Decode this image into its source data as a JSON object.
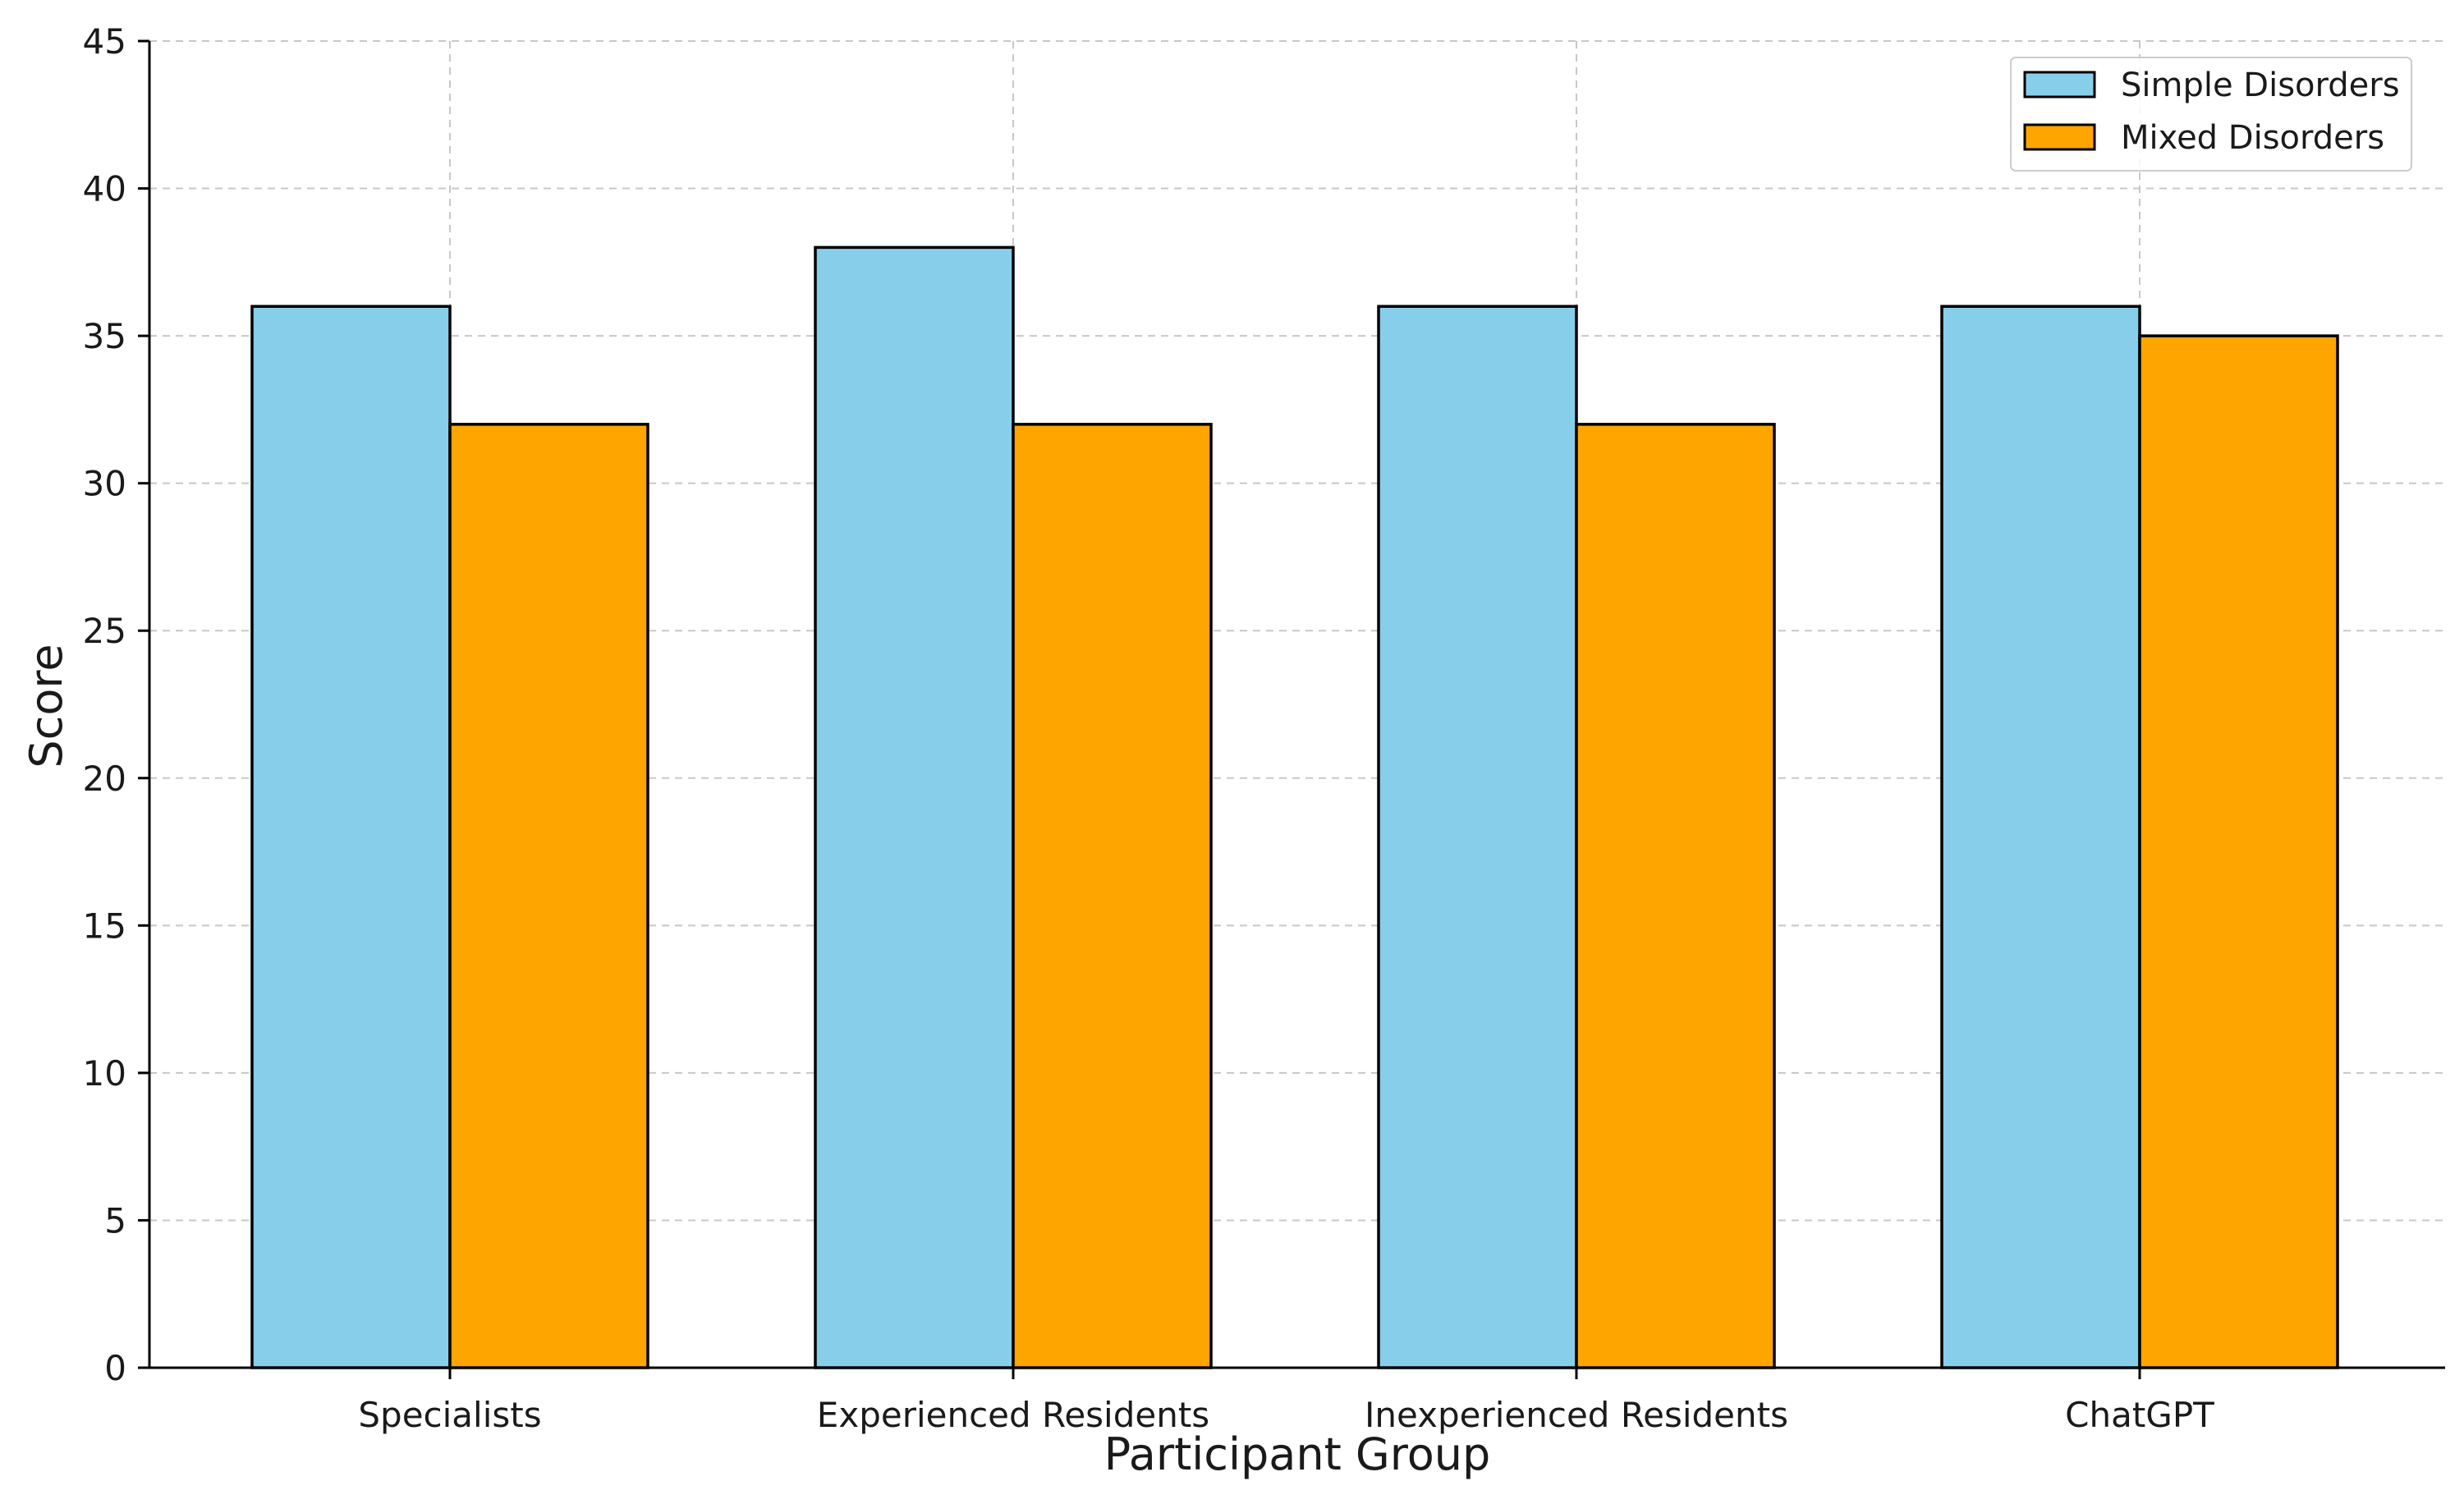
{
  "chart_data": {
    "type": "bar",
    "title": "",
    "xlabel": "Participant Group",
    "ylabel": "Score",
    "ylim": [
      0,
      45
    ],
    "yticks": [
      0,
      5,
      10,
      15,
      20,
      25,
      30,
      35,
      40,
      45
    ],
    "grid": true,
    "legend_position": "top-right",
    "categories": [
      "Specialists",
      "Experienced Residents",
      "Inexperienced Residents",
      "ChatGPT"
    ],
    "series": [
      {
        "name": "Simple Disorders",
        "color": "#87CEEB",
        "values": [
          36,
          38,
          36,
          36
        ]
      },
      {
        "name": "Mixed Disorders",
        "color": "#FFA500",
        "values": [
          32,
          32,
          32,
          35
        ]
      }
    ]
  }
}
